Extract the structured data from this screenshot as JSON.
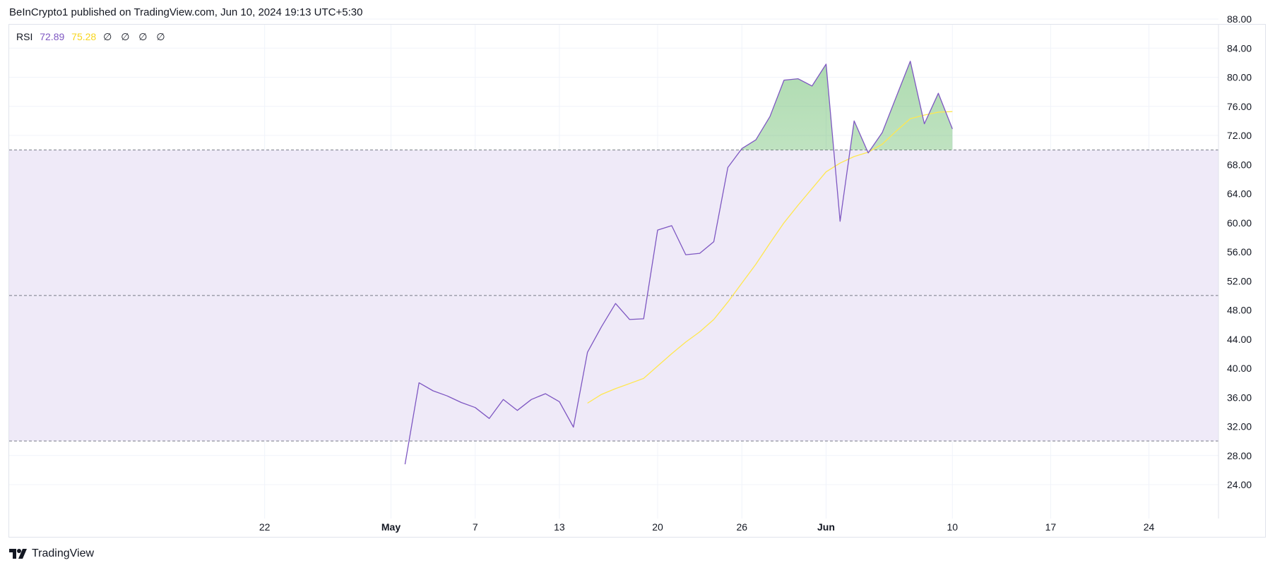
{
  "header": {
    "published_text": "BeInCrypto1 published on TradingView.com, Jun 10, 2024 19:13 UTC+5:30"
  },
  "legend": {
    "name": "RSI",
    "rsi_value": "72.89",
    "ma_value": "75.28",
    "null_values": [
      "∅",
      "∅",
      "∅",
      "∅"
    ]
  },
  "footer": {
    "brand": "TradingView"
  },
  "colors": {
    "rsi_line": "#7e57c2",
    "ma_line": "#ffe74f",
    "band_fill": "#efeaf8",
    "overbought_fill": "#4caf50",
    "grid": "#f0f3fa",
    "axis_text": "#131722",
    "dashed": "#787b86"
  },
  "chart_data": {
    "type": "line",
    "title": "",
    "ylim": [
      20,
      90
    ],
    "y_ticks": [
      "24.00",
      "28.00",
      "32.00",
      "36.00",
      "40.00",
      "44.00",
      "48.00",
      "52.00",
      "56.00",
      "60.00",
      "64.00",
      "68.00",
      "72.00",
      "76.00",
      "80.00",
      "84.00",
      "88.00"
    ],
    "x_ticks": [
      {
        "label": "22",
        "date": "2024-04-22",
        "bold": false
      },
      {
        "label": "May",
        "date": "2024-05-01",
        "bold": true
      },
      {
        "label": "7",
        "date": "2024-05-07",
        "bold": false
      },
      {
        "label": "13",
        "date": "2024-05-13",
        "bold": false
      },
      {
        "label": "20",
        "date": "2024-05-20",
        "bold": false
      },
      {
        "label": "26",
        "date": "2024-05-26",
        "bold": false
      },
      {
        "label": "Jun",
        "date": "2024-06-01",
        "bold": true
      },
      {
        "label": "10",
        "date": "2024-06-10",
        "bold": false
      },
      {
        "label": "17",
        "date": "2024-06-17",
        "bold": false
      },
      {
        "label": "24",
        "date": "2024-06-24",
        "bold": false
      }
    ],
    "bands": {
      "upper": 70,
      "middle": 50,
      "lower": 30
    },
    "grid": true,
    "series": [
      {
        "name": "RSI",
        "x": [
          "2024-05-02",
          "2024-05-03",
          "2024-05-04",
          "2024-05-05",
          "2024-05-06",
          "2024-05-07",
          "2024-05-08",
          "2024-05-09",
          "2024-05-10",
          "2024-05-11",
          "2024-05-12",
          "2024-05-13",
          "2024-05-14",
          "2024-05-15",
          "2024-05-16",
          "2024-05-17",
          "2024-05-18",
          "2024-05-19",
          "2024-05-20",
          "2024-05-21",
          "2024-05-22",
          "2024-05-23",
          "2024-05-24",
          "2024-05-25",
          "2024-05-26",
          "2024-05-27",
          "2024-05-28",
          "2024-05-29",
          "2024-05-30",
          "2024-05-31",
          "2024-06-01",
          "2024-06-02",
          "2024-06-03",
          "2024-06-04",
          "2024-06-05",
          "2024-06-06",
          "2024-06-07",
          "2024-06-08",
          "2024-06-09",
          "2024-06-10"
        ],
        "values": [
          26.8,
          38.0,
          36.9,
          36.2,
          35.3,
          34.6,
          33.1,
          35.7,
          34.2,
          35.7,
          36.5,
          35.4,
          31.9,
          42.2,
          45.7,
          48.9,
          46.7,
          46.8,
          59.0,
          59.6,
          55.6,
          55.8,
          57.4,
          67.6,
          70.2,
          71.4,
          74.6,
          79.6,
          79.8,
          78.8,
          81.8,
          60.2,
          74.0,
          69.6,
          72.4,
          77.3,
          82.2,
          73.6,
          77.8,
          72.89
        ]
      },
      {
        "name": "RSI-based MA",
        "x": [
          "2024-05-15",
          "2024-05-16",
          "2024-05-17",
          "2024-05-18",
          "2024-05-19",
          "2024-05-20",
          "2024-05-21",
          "2024-05-22",
          "2024-05-23",
          "2024-05-24",
          "2024-05-25",
          "2024-05-26",
          "2024-05-27",
          "2024-05-28",
          "2024-05-29",
          "2024-05-30",
          "2024-05-31",
          "2024-06-01",
          "2024-06-02",
          "2024-06-03",
          "2024-06-04",
          "2024-06-05",
          "2024-06-06",
          "2024-06-07",
          "2024-06-08",
          "2024-06-09",
          "2024-06-10"
        ],
        "values": [
          35.2,
          36.4,
          37.2,
          37.9,
          38.6,
          40.3,
          42.0,
          43.6,
          45.0,
          46.7,
          49.1,
          51.7,
          54.3,
          57.2,
          60.0,
          62.4,
          64.7,
          67.0,
          68.2,
          69.1,
          69.7,
          70.8,
          72.6,
          74.3,
          74.8,
          75.2,
          75.28
        ]
      }
    ]
  }
}
